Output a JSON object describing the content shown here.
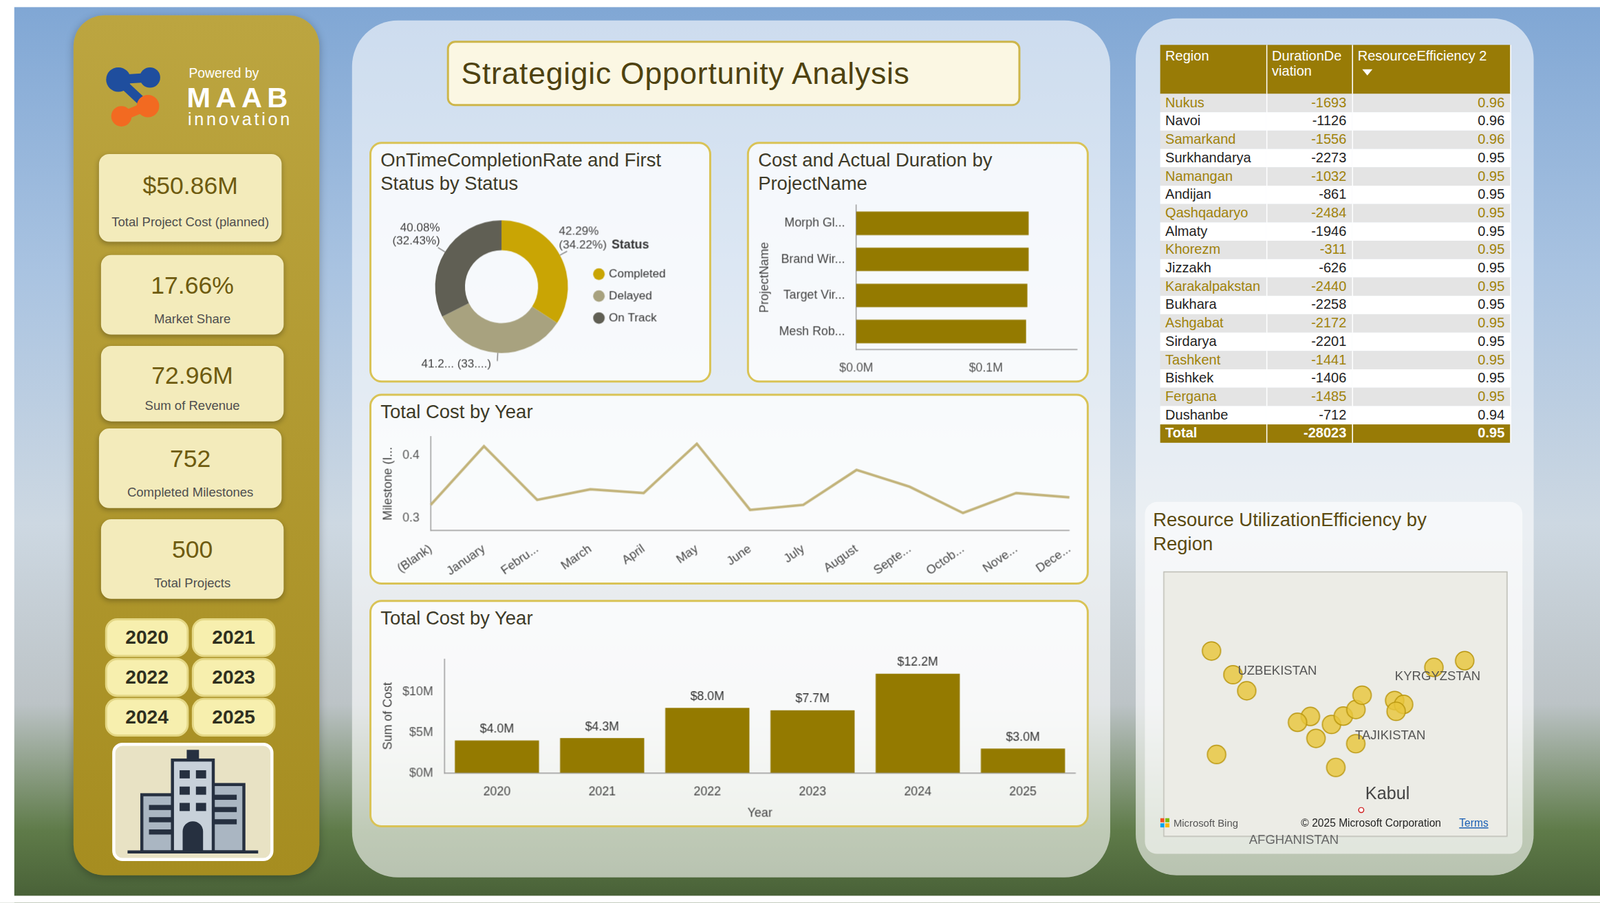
{
  "title": "Strategigic Opportunity Analysis",
  "brand": {
    "powered_by": "Powered by",
    "name": "MAAB",
    "sub": "innovation"
  },
  "kpis": [
    {
      "value": "$50.86M",
      "label": "Total Project Cost (planned)"
    },
    {
      "value": "17.66%",
      "label": "Market Share"
    },
    {
      "value": "72.96M",
      "label": "Sum of Revenue"
    },
    {
      "value": "752",
      "label": "Completed Milestones"
    },
    {
      "value": "500",
      "label": "Total Projects"
    }
  ],
  "year_buttons": [
    "2020",
    "2021",
    "2022",
    "2023",
    "2024",
    "2025"
  ],
  "chart_data": [
    {
      "type": "doughnut",
      "title": "OnTimeCompletionRate and First Status by Status",
      "categories": [
        "Completed",
        "Delayed",
        "On Track"
      ],
      "values": [
        34.22,
        33.35,
        32.43
      ],
      "value_labels": [
        "42.29% (34.22%)",
        "41.2... (33....)",
        "40.08% (32.43%)"
      ],
      "colors": [
        "#C9A504",
        "#A8A27F",
        "#605F54"
      ],
      "data_labels": true,
      "legend": "right",
      "legend_title": "Status"
    },
    {
      "type": "bar",
      "orientation": "horizontal",
      "title": "Cost and Actual Duration by ProjectName",
      "y_label": "ProjectName",
      "categories": [
        "Morph Gl...",
        "Brand Wir...",
        "Target Vir...",
        "Mesh Rob..."
      ],
      "values": [
        0.133,
        0.133,
        0.132,
        0.131
      ],
      "color": "#947A00",
      "xlim": [
        0,
        0.17
      ],
      "xticks": [
        {
          "value": 0,
          "label": "$0.0M"
        },
        {
          "value": 0.1,
          "label": "$0.1M"
        }
      ],
      "grid": false
    },
    {
      "type": "line",
      "title": "Total Cost by Year",
      "y_label": "Milestone (I...",
      "categories": [
        "(Blank)",
        "January",
        "Febru...",
        "March",
        "April",
        "May",
        "June",
        "July",
        "August",
        "Septe...",
        "Octob...",
        "Nove...",
        "Dece..."
      ],
      "values": [
        0.321,
        0.415,
        0.329,
        0.346,
        0.34,
        0.419,
        0.313,
        0.321,
        0.377,
        0.35,
        0.308,
        0.34,
        0.333
      ],
      "color": "#C2B37A",
      "ylim": [
        0.28,
        0.43
      ],
      "yticks": [
        0.3,
        0.4
      ],
      "grid": false
    },
    {
      "type": "bar",
      "title": "Total Cost by Year",
      "x_label": "Year",
      "y_label": "Sum of Cost",
      "categories": [
        "2020",
        "2021",
        "2022",
        "2023",
        "2024",
        "2025"
      ],
      "values": [
        4.0,
        4.3,
        8.0,
        7.7,
        12.2,
        3.0
      ],
      "value_labels": [
        "$4.0M",
        "$4.3M",
        "$8.0M",
        "$7.7M",
        "$12.2M",
        "$3.0M"
      ],
      "data_labels": true,
      "color": "#947A00",
      "ylim": [
        0,
        14
      ],
      "yticks": [
        {
          "value": 0,
          "label": "$0M"
        },
        {
          "value": 5,
          "label": "$5M"
        },
        {
          "value": 10,
          "label": "$10M"
        }
      ],
      "grid": false
    },
    {
      "type": "scatter",
      "title": "Resource UtilizationEfficiency by Region",
      "x": [
        59.6,
        65.38,
        66.96,
        67.28,
        71.67,
        72.34,
        65.8,
        76.9,
        60.63,
        67.84,
        58.0,
        64.42,
        58.38,
        68.78,
        69.24,
        74.6,
        71.78,
        68.77
      ],
      "values": [
        42.46,
        40.1,
        39.65,
        37.22,
        41.0,
        40.78,
        38.86,
        43.25,
        41.55,
        40.12,
        43.8,
        39.77,
        37.95,
        40.49,
        41.3,
        42.87,
        40.39,
        38.56
      ],
      "color": "#E8C63C",
      "xlim": [
        54.4,
        80.1
      ],
      "ylim": [
        33.3,
        48.3
      ],
      "tick_labels": false,
      "grid": false,
      "annotations": [
        "UZBEKISTAN",
        "KYRGYZSTAN",
        "TAJIKISTAN",
        "Kabul",
        "AFGHANISTAN",
        "Microsoft Bing",
        "© 2025 Microsoft Corporation",
        "Terms"
      ]
    }
  ],
  "table": {
    "columns": [
      "Region",
      "DurationDeviation",
      "ResourceEfficiency 2"
    ],
    "rows": [
      [
        "Nukus",
        -1693,
        0.96
      ],
      [
        "Navoi",
        -1126,
        0.96
      ],
      [
        "Samarkand",
        -1556,
        0.96
      ],
      [
        "Surkhandarya",
        -2273,
        0.95
      ],
      [
        "Namangan",
        -1032,
        0.95
      ],
      [
        "Andijan",
        -861,
        0.95
      ],
      [
        "Qashqadaryo",
        -2484,
        0.95
      ],
      [
        "Almaty",
        -1946,
        0.95
      ],
      [
        "Khorezm",
        -311,
        0.95
      ],
      [
        "Jizzakh",
        -626,
        0.95
      ],
      [
        "Karakalpakstan",
        -2440,
        0.95
      ],
      [
        "Bukhara",
        -2258,
        0.95
      ],
      [
        "Ashgabat",
        -2172,
        0.95
      ],
      [
        "Sirdarya",
        -2201,
        0.95
      ],
      [
        "Tashkent",
        -1441,
        0.95
      ],
      [
        "Bishkek",
        -1406,
        0.95
      ],
      [
        "Fergana",
        -1485,
        0.95
      ],
      [
        "Dushanbe",
        -712,
        0.94
      ]
    ],
    "total": [
      "Total",
      -28023,
      0.95
    ]
  }
}
